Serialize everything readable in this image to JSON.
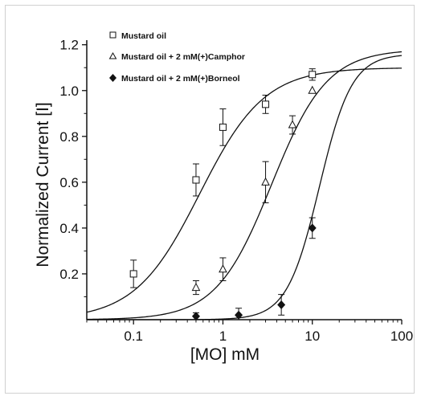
{
  "chart_data": {
    "type": "scatter",
    "xlabel": "[MO] mM",
    "ylabel": "Normalized Current [I]",
    "xscale": "log",
    "xlim": [
      0.03,
      100
    ],
    "ylim": [
      0,
      1.22
    ],
    "x_ticks": [
      "0.1",
      "1",
      "10",
      "100"
    ],
    "y_ticks": [
      "0.2",
      "0.4",
      "0.6",
      "0.8",
      "1.0",
      "1.2"
    ],
    "grid": false,
    "legend_position": "top-left",
    "series": [
      {
        "name": "Mustard oil",
        "marker": "open-square",
        "x": [
          0.1,
          0.5,
          1,
          3,
          10
        ],
        "y": [
          0.2,
          0.61,
          0.84,
          0.94,
          1.07
        ],
        "err": [
          0.06,
          0.07,
          0.08,
          0.04,
          0.025
        ],
        "fit": {
          "top": 1.1,
          "ec50": 0.55,
          "hill": 1.2,
          "bottom": 0
        }
      },
      {
        "name": "Mustard oil + 2 mM(+)Camphor",
        "marker": "open-triangle",
        "x": [
          0.5,
          1,
          3,
          6,
          10
        ],
        "y": [
          0.14,
          0.22,
          0.6,
          0.85,
          1.0
        ],
        "err": [
          0.03,
          0.05,
          0.09,
          0.04,
          0.0
        ],
        "fit": {
          "top": 1.18,
          "ec50": 3.5,
          "hill": 1.4,
          "bottom": 0
        }
      },
      {
        "name": "Mustard oil + 2 mM(+)Borneol",
        "marker": "filled-diamond",
        "x": [
          0.5,
          1.5,
          4.5,
          10
        ],
        "y": [
          0.015,
          0.02,
          0.065,
          0.4
        ],
        "err": [
          0.015,
          0.03,
          0.045,
          0.045
        ],
        "fit": {
          "top": 1.16,
          "ec50": 12,
          "hill": 2.4,
          "bottom": 0
        }
      }
    ]
  }
}
